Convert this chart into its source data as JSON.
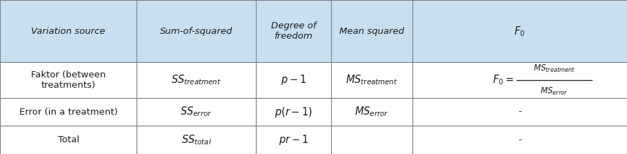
{
  "figsize": [
    9.09,
    2.23
  ],
  "dpi": 100,
  "header_bg": "#C9DFF0",
  "row_bg": "#FFFFFF",
  "border_color": "#7F7F7F",
  "text_color": "#1a1a1a",
  "col_bounds": [
    0.0,
    0.218,
    0.408,
    0.528,
    0.658,
    1.0
  ],
  "row_bounds": [
    1.0,
    0.595,
    0.365,
    0.182,
    0.0
  ]
}
